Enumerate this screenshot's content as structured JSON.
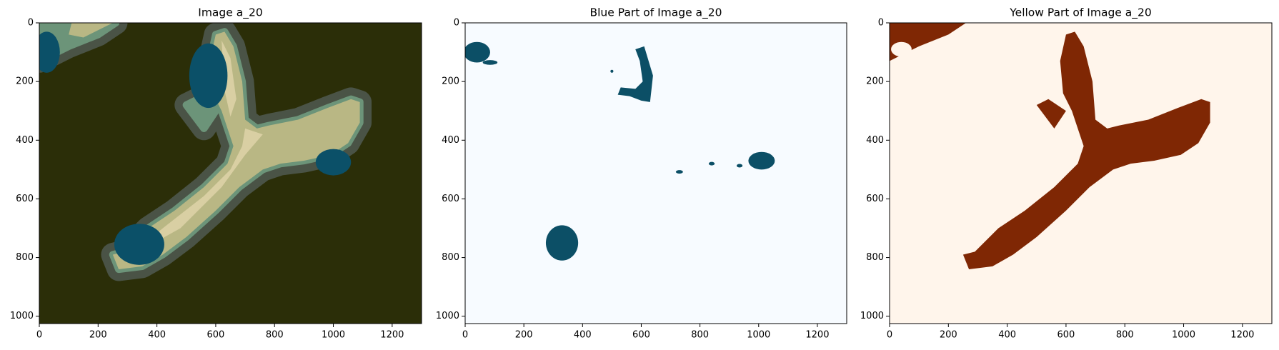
{
  "chart_data": [
    {
      "type": "image",
      "title": "Image a_20",
      "xlim": [
        0,
        1300
      ],
      "ylim": [
        1025,
        0
      ],
      "xticks": [
        0,
        200,
        400,
        600,
        800,
        1000,
        1200
      ],
      "yticks": [
        0,
        200,
        400,
        600,
        800,
        1000
      ]
    },
    {
      "type": "image",
      "title": "Blue Part of Image a_20",
      "xlim": [
        0,
        1300
      ],
      "ylim": [
        1025,
        0
      ],
      "xticks": [
        0,
        200,
        400,
        600,
        800,
        1000,
        1200
      ],
      "yticks": [
        0,
        200,
        400,
        600,
        800,
        1000
      ]
    },
    {
      "type": "image",
      "title": "Yellow Part of Image a_20",
      "xlim": [
        0,
        1300
      ],
      "ylim": [
        1025,
        0
      ],
      "xticks": [
        0,
        200,
        400,
        600,
        800,
        1000,
        1200
      ],
      "yticks": [
        0,
        200,
        400,
        600,
        800,
        1000
      ]
    }
  ]
}
